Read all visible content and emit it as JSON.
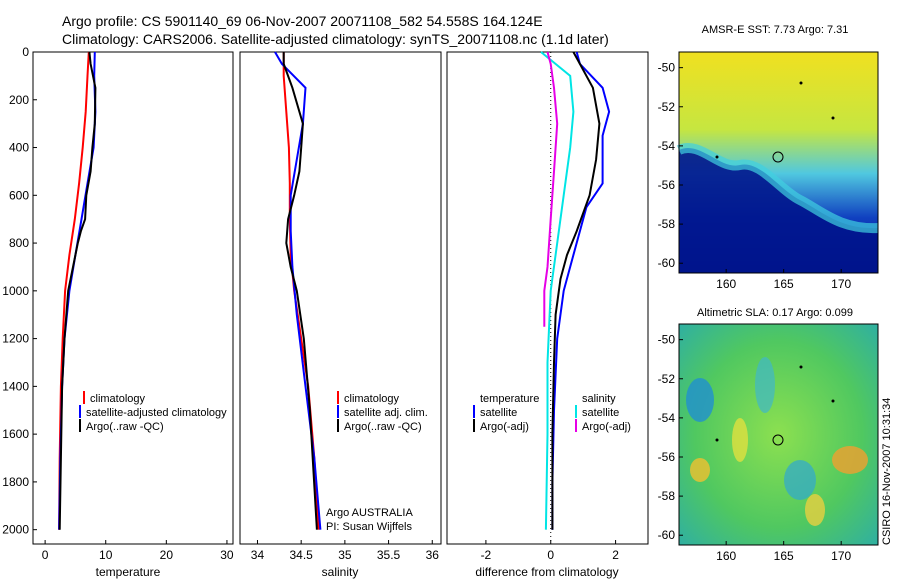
{
  "header": {
    "line1": "Argo profile: CS 5901140_69 06-Nov-2007 20071108_582 54.558S 164.124E",
    "line2": "Climatology: CARS2006. Satellite-adjusted climatology: synTS_20071108.nc (1.1d later)"
  },
  "colors": {
    "climatology": "#ff0000",
    "satellite": "#0000ff",
    "argo": "#000000",
    "cyan": "#00e5e5",
    "magenta": "#e600e6"
  },
  "chart_data": [
    {
      "id": "temperature",
      "type": "line",
      "xlabel": "temperature",
      "xlim": [
        -2,
        31
      ],
      "ylim": [
        2060,
        0
      ],
      "xticks": [
        0,
        10,
        20,
        30
      ],
      "yticks": [
        0,
        200,
        400,
        600,
        800,
        1000,
        1200,
        1400,
        1600,
        1800,
        2000
      ],
      "legend": [
        "climatology",
        "satellite-adjusted climatology",
        "Argo(..raw -QC)"
      ],
      "series": [
        {
          "name": "climatology",
          "color": "#ff0000",
          "x": [
            7.2,
            7.0,
            6.7,
            6.2,
            5.6,
            4.9,
            4.0,
            3.3,
            2.9,
            2.6,
            2.4,
            2.3
          ],
          "y": [
            0,
            100,
            250,
            400,
            550,
            700,
            850,
            1000,
            1200,
            1400,
            1700,
            2000
          ]
        },
        {
          "name": "satellite-adjusted climatology",
          "color": "#0000ff",
          "x": [
            8.2,
            8.1,
            8.3,
            8.0,
            7.0,
            6.0,
            5.0,
            4.0,
            3.2,
            2.8,
            2.5,
            2.3
          ],
          "y": [
            0,
            100,
            250,
            400,
            550,
            700,
            850,
            1000,
            1200,
            1400,
            1700,
            2000
          ]
        },
        {
          "name": "Argo(..raw -QC)",
          "color": "#000000",
          "x": [
            7.3,
            7.5,
            8.3,
            8.2,
            7.8,
            7.5,
            6.8,
            6.6,
            5.9,
            5.4,
            4.6,
            3.8,
            3.2,
            2.8,
            2.6,
            2.4
          ],
          "y": [
            0,
            50,
            150,
            300,
            400,
            500,
            600,
            700,
            750,
            800,
            900,
            1000,
            1200,
            1400,
            1700,
            2000
          ]
        }
      ]
    },
    {
      "id": "salinity",
      "type": "line",
      "xlabel": "salinity",
      "xlim": [
        33.8,
        36.1
      ],
      "ylim": [
        2060,
        0
      ],
      "xticks": [
        34,
        34.5,
        35,
        35.5,
        36
      ],
      "legend": [
        "climatology",
        "satellite adj. clim.",
        "Argo(..raw -QC)"
      ],
      "annotation": [
        "Argo AUSTRALIA",
        "PI: Susan Wijffels"
      ],
      "series": [
        {
          "name": "climatology",
          "color": "#ff0000",
          "x": [
            34.3,
            34.3,
            34.33,
            34.36,
            34.37,
            34.37,
            34.38,
            34.42,
            34.5,
            34.58,
            34.65,
            34.7
          ],
          "y": [
            0,
            100,
            250,
            400,
            550,
            700,
            850,
            1000,
            1200,
            1400,
            1700,
            2000
          ]
        },
        {
          "name": "satellite adj. clim.",
          "color": "#0000ff",
          "x": [
            34.2,
            34.28,
            34.55,
            34.52,
            34.45,
            34.38,
            34.38,
            34.4,
            34.45,
            34.55,
            34.65,
            34.72
          ],
          "y": [
            0,
            50,
            150,
            300,
            450,
            600,
            750,
            900,
            1100,
            1400,
            1700,
            2000
          ]
        },
        {
          "name": "Argo(..raw -QC)",
          "color": "#000000",
          "x": [
            34.3,
            34.3,
            34.4,
            34.52,
            34.5,
            34.48,
            34.42,
            34.35,
            34.33,
            34.38,
            34.45,
            34.53,
            34.6,
            34.68
          ],
          "y": [
            0,
            50,
            150,
            300,
            400,
            500,
            600,
            700,
            800,
            900,
            1000,
            1200,
            1500,
            2000
          ]
        }
      ]
    },
    {
      "id": "difference",
      "type": "line",
      "xlabel": "difference from climatology",
      "xlim": [
        -3.2,
        3.0
      ],
      "ylim": [
        2060,
        0
      ],
      "xticks": [
        -2,
        0,
        2
      ],
      "legend_headers": [
        "temperature",
        "salinity"
      ],
      "legend": [
        "satellite",
        "Argo(-adj)",
        "satellite",
        "Argo(-adj)"
      ],
      "series": [
        {
          "name": "temperature satellite",
          "color": "#0000ff",
          "x": [
            0.8,
            0.9,
            1.6,
            1.8,
            1.6,
            1.6,
            1.1,
            0.7,
            0.4,
            0.2,
            0.1,
            0.05,
            0.05
          ],
          "y": [
            0,
            50,
            150,
            250,
            350,
            550,
            650,
            850,
            1000,
            1200,
            1500,
            1800,
            2000
          ]
        },
        {
          "name": "temperature Argo(-adj)",
          "color": "#000000",
          "x": [
            0.7,
            0.9,
            1.3,
            1.5,
            1.4,
            1.2,
            0.8,
            0.5,
            0.3,
            0.15,
            0.1,
            0.05,
            0.05
          ],
          "y": [
            0,
            50,
            150,
            300,
            450,
            600,
            750,
            850,
            950,
            1100,
            1300,
            1600,
            2000
          ]
        },
        {
          "name": "salinity satellite",
          "color": "#00e5e5",
          "x": [
            -0.3,
            0.6,
            0.7,
            0.6,
            0.4,
            0.2,
            0.0,
            -0.1,
            -0.1,
            -0.15
          ],
          "y": [
            0,
            100,
            250,
            400,
            600,
            800,
            1000,
            1300,
            1600,
            2000
          ]
        },
        {
          "name": "salinity Argo(-adj)",
          "color": "#e600e6",
          "x": [
            -0.1,
            0.0,
            0.1,
            0.2,
            0.1,
            0.0,
            -0.1,
            -0.2,
            -0.2
          ],
          "y": [
            0,
            50,
            150,
            300,
            500,
            700,
            900,
            1000,
            1150
          ]
        }
      ]
    }
  ],
  "maps": [
    {
      "title": "AMSR-E SST: 7.73 Argo: 7.31",
      "xticks": [
        160,
        165,
        170
      ],
      "yticks": [
        -50,
        -52,
        -54,
        -56,
        -58,
        -60
      ]
    },
    {
      "title": "Altimetric SLA: 0.17 Argo: 0.099",
      "xticks": [
        160,
        165,
        170
      ],
      "yticks": [
        -50,
        -52,
        -54,
        -56,
        -58,
        -60
      ]
    }
  ],
  "side_label": "CSIRO 16-Nov-2007 10:31:34"
}
